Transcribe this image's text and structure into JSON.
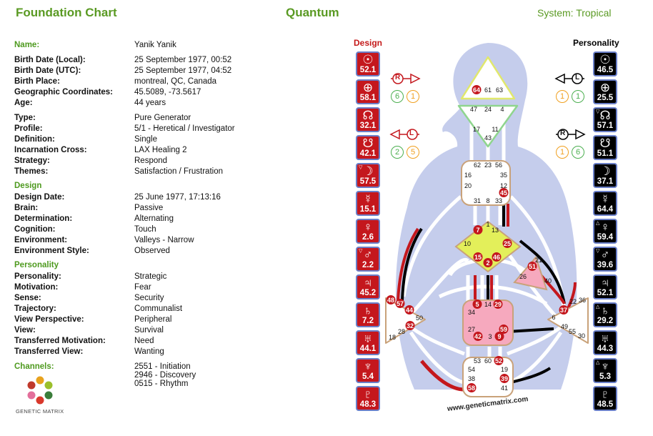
{
  "header": {
    "left_title": "Foundation Chart",
    "center_title": "Quantum",
    "system": "System: Tropical"
  },
  "info": {
    "name": {
      "label": "Name:",
      "value": "Yanik Yanik"
    },
    "birth_local": {
      "label": "Birth Date (Local):",
      "value": "25 September 1977, 00:52"
    },
    "birth_utc": {
      "label": "Birth Date (UTC):",
      "value": "25 September 1977, 04:52"
    },
    "birth_place": {
      "label": "Birth Place:",
      "value": "montreal, QC, Canada"
    },
    "geo": {
      "label": "Geographic Coordinates:",
      "value": "45.5089, -73.5617"
    },
    "age": {
      "label": "Age:",
      "value": "44 years"
    },
    "type": {
      "label": "Type:",
      "value": "Pure Generator"
    },
    "profile": {
      "label": "Profile:",
      "value": "5/1 - Heretical / Investigator"
    },
    "definition": {
      "label": "Definition:",
      "value": "Single"
    },
    "cross": {
      "label": "Incarnation Cross:",
      "value": "LAX Healing 2"
    },
    "strategy": {
      "label": "Strategy:",
      "value": "Respond"
    },
    "themes": {
      "label": "Themes:",
      "value": "Satisfaction / Frustration"
    }
  },
  "design_section": {
    "title": "Design",
    "date": {
      "label": "Design Date:",
      "value": "25 June 1977, 17:13:16"
    },
    "brain": {
      "label": "Brain:",
      "value": "Passive"
    },
    "determination": {
      "label": "Determination:",
      "value": "Alternating"
    },
    "cognition": {
      "label": "Cognition:",
      "value": "Touch"
    },
    "environment": {
      "label": "Environment:",
      "value": "Valleys - Narrow"
    },
    "env_style": {
      "label": "Environment Style:",
      "value": "Observed"
    }
  },
  "personality_section": {
    "title": "Personality",
    "personality": {
      "label": "Personality:",
      "value": "Strategic"
    },
    "motivation": {
      "label": "Motivation:",
      "value": "Fear"
    },
    "sense": {
      "label": "Sense:",
      "value": "Security"
    },
    "trajectory": {
      "label": "Trajectory:",
      "value": "Communalist"
    },
    "view_perspective": {
      "label": "View Perspective:",
      "value": "Peripheral"
    },
    "view": {
      "label": "View:",
      "value": "Survival"
    },
    "t_motivation": {
      "label": "Transferred Motivation:",
      "value": "Need"
    },
    "t_view": {
      "label": "Transferred View:",
      "value": "Wanting"
    }
  },
  "channels": {
    "label": "Channels:",
    "items": [
      "2551 - Initiation",
      "2946 - Discovery",
      "0515 - Rhythm"
    ]
  },
  "logo": {
    "text": "GENETIC MATRIX",
    "icon": "hexagon-petals-logo"
  },
  "columns": {
    "design": "Design",
    "personality": "Personality"
  },
  "design_planets": [
    {
      "symbol": "☉",
      "value": "52.1",
      "icon": "sun-icon",
      "mark": ""
    },
    {
      "symbol": "⊕",
      "value": "58.1",
      "icon": "earth-icon",
      "mark": ""
    },
    {
      "symbol": "☊",
      "value": "32.1",
      "icon": "north-node-icon",
      "mark": ""
    },
    {
      "symbol": "☋",
      "value": "42.1",
      "icon": "south-node-icon",
      "mark": ""
    },
    {
      "symbol": "☽",
      "value": "57.5",
      "icon": "moon-icon",
      "mark": "▽"
    },
    {
      "symbol": "☿",
      "value": "15.1",
      "icon": "mercury-icon",
      "mark": ""
    },
    {
      "symbol": "♀",
      "value": "2.6",
      "icon": "venus-icon",
      "mark": ""
    },
    {
      "symbol": "♂",
      "value": "2.2",
      "icon": "mars-icon",
      "mark": "▽"
    },
    {
      "symbol": "♃",
      "value": "45.2",
      "icon": "jupiter-icon",
      "mark": ""
    },
    {
      "symbol": "♄",
      "value": "7.2",
      "icon": "saturn-icon",
      "mark": ""
    },
    {
      "symbol": "♅",
      "value": "44.1",
      "icon": "uranus-icon",
      "mark": ""
    },
    {
      "symbol": "♆",
      "value": "5.4",
      "icon": "neptune-icon",
      "mark": ""
    },
    {
      "symbol": "♇",
      "value": "48.3",
      "icon": "pluto-icon",
      "mark": ""
    }
  ],
  "personality_planets": [
    {
      "symbol": "☉",
      "value": "46.5",
      "icon": "sun-icon",
      "mark": ""
    },
    {
      "symbol": "⊕",
      "value": "25.5",
      "icon": "earth-icon",
      "mark": ""
    },
    {
      "symbol": "☊",
      "value": "57.1",
      "icon": "north-node-icon",
      "mark": "▽"
    },
    {
      "symbol": "☋",
      "value": "51.1",
      "icon": "south-node-icon",
      "mark": ""
    },
    {
      "symbol": "☽",
      "value": "37.1",
      "icon": "moon-icon",
      "mark": ""
    },
    {
      "symbol": "☿",
      "value": "64.4",
      "icon": "mercury-icon",
      "mark": ""
    },
    {
      "symbol": "♀",
      "value": "59.4",
      "icon": "venus-icon",
      "mark": "△"
    },
    {
      "symbol": "♂",
      "value": "39.6",
      "icon": "mars-icon",
      "mark": "▽"
    },
    {
      "symbol": "♃",
      "value": "52.1",
      "icon": "jupiter-icon",
      "mark": ""
    },
    {
      "symbol": "♄",
      "value": "29.2",
      "icon": "saturn-icon",
      "mark": "△"
    },
    {
      "symbol": "♅",
      "value": "44.3",
      "icon": "uranus-icon",
      "mark": ""
    },
    {
      "symbol": "♆",
      "value": "5.3",
      "icon": "neptune-icon",
      "mark": "△"
    },
    {
      "symbol": "♇",
      "value": "48.5",
      "icon": "pluto-icon",
      "mark": ""
    }
  ],
  "variables": {
    "design_top": {
      "letter": "R",
      "a": "6",
      "b": "1"
    },
    "design_bottom": {
      "letter": "L",
      "a": "2",
      "b": "5"
    },
    "pers_top": {
      "letter": "L",
      "a": "1",
      "b": "1"
    },
    "pers_bottom": {
      "letter": "R",
      "a": "1",
      "b": "6"
    }
  },
  "watermark": "www.geneticmatrix.com",
  "centers": {
    "head": [
      "64",
      "61",
      "63"
    ],
    "ajna": [
      "47",
      "24",
      "4",
      "17",
      "11",
      "43"
    ],
    "throat": [
      "62",
      "23",
      "56",
      "16",
      "35",
      "20",
      "12",
      "45",
      "31",
      "8",
      "33"
    ],
    "g": [
      "1",
      "7",
      "13",
      "10",
      "25",
      "15",
      "2",
      "46"
    ],
    "heart": [
      "21",
      "51",
      "26",
      "40"
    ],
    "spleen": [
      "48",
      "57",
      "44",
      "50",
      "32",
      "28",
      "18"
    ],
    "sacral": [
      "5",
      "14",
      "29",
      "34",
      "27",
      "59",
      "42",
      "3",
      "9"
    ],
    "solar": [
      "22",
      "36",
      "37",
      "6",
      "49",
      "55",
      "30"
    ],
    "root": [
      "53",
      "60",
      "52",
      "54",
      "19",
      "38",
      "39",
      "58",
      "41"
    ]
  }
}
